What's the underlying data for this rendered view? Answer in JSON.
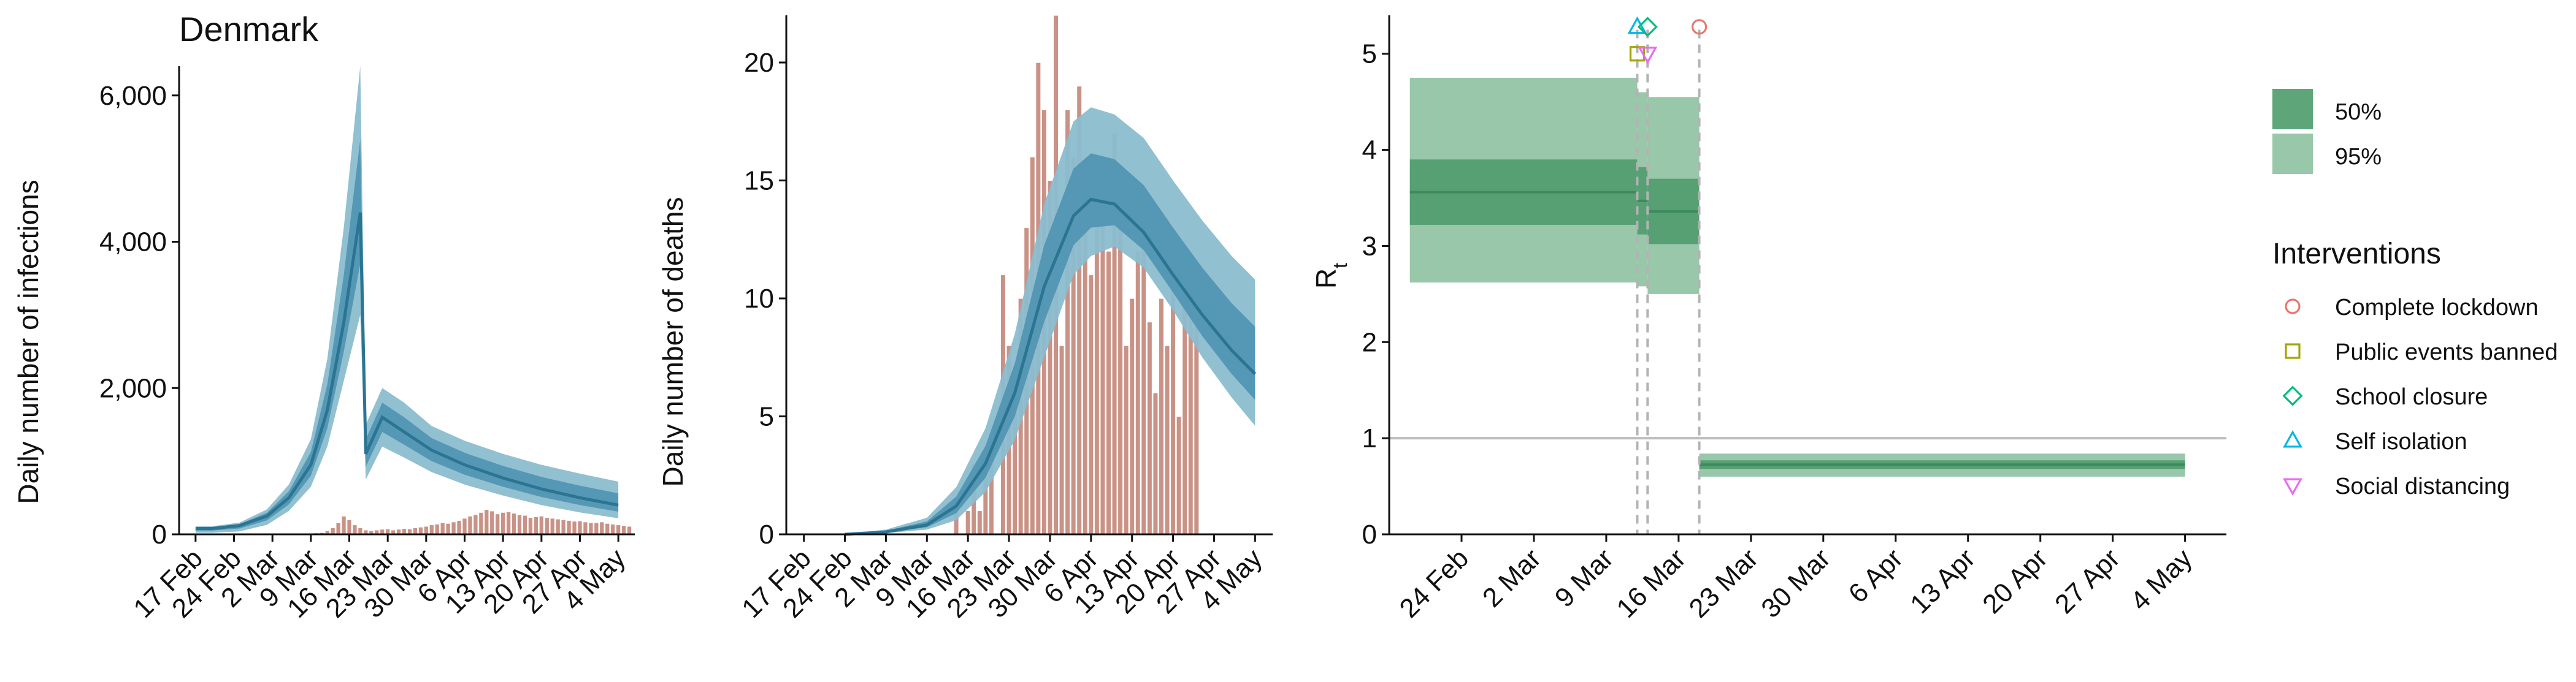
{
  "chart_data": [
    {
      "type": "bar",
      "title": "Denmark",
      "xlabel": "",
      "ylabel": "Daily number of infections",
      "x_ticks": [
        "17 Feb",
        "24 Feb",
        "2 Mar",
        "9 Mar",
        "16 Mar",
        "23 Mar",
        "30 Mar",
        "6 Apr",
        "13 Apr",
        "20 Apr",
        "27 Apr",
        "4 May"
      ],
      "y_ticks": [
        "0",
        "2,000",
        "4,000",
        "6,000"
      ],
      "xlim": [
        "2020-02-14",
        "2020-05-07"
      ],
      "ylim": [
        0,
        6400
      ],
      "bars_observed_cases": {
        "start": "2020-03-01",
        "values": [
          3,
          4,
          4,
          5,
          6,
          8,
          10,
          12,
          15,
          20,
          25,
          50,
          90,
          160,
          250,
          200,
          130,
          90,
          60,
          50,
          60,
          70,
          75,
          60,
          70,
          80,
          75,
          90,
          100,
          110,
          130,
          140,
          160,
          150,
          170,
          190,
          220,
          250,
          270,
          300,
          340,
          320,
          280,
          300,
          310,
          290,
          270,
          260,
          230,
          240,
          250,
          230,
          220,
          210,
          200,
          190,
          180,
          185,
          170,
          160,
          160,
          170,
          150,
          140,
          130,
          120,
          110
        ]
      },
      "model_series": [
        {
          "band": "95%",
          "points": [
            [
              "2020-02-17",
              80,
              110,
              20
            ],
            [
              "2020-02-20",
              80,
              110,
              20
            ],
            [
              "2020-02-25",
              120,
              160,
              40
            ],
            [
              "2020-03-01",
              250,
              340,
              130
            ],
            [
              "2020-03-05",
              500,
              680,
              320
            ],
            [
              "2020-03-09",
              950,
              1300,
              650
            ],
            [
              "2020-03-12",
              1700,
              2400,
              1200
            ],
            [
              "2020-03-15",
              2900,
              4200,
              2100
            ],
            [
              "2020-03-18",
              4400,
              6400,
              3000
            ],
            [
              "2020-03-19",
              1100,
              1500,
              750
            ],
            [
              "2020-03-22",
              1600,
              2000,
              1200
            ],
            [
              "2020-03-26",
              1400,
              1800,
              1050
            ],
            [
              "2020-03-31",
              1150,
              1480,
              850
            ],
            [
              "2020-04-06",
              950,
              1280,
              680
            ],
            [
              "2020-04-13",
              770,
              1100,
              530
            ],
            [
              "2020-04-20",
              620,
              950,
              400
            ],
            [
              "2020-04-27",
              500,
              830,
              300
            ],
            [
              "2020-05-04",
              400,
              720,
              220
            ]
          ]
        }
      ]
    },
    {
      "type": "bar",
      "xlabel": "",
      "ylabel": "Daily number of deaths",
      "x_ticks": [
        "17 Feb",
        "24 Feb",
        "2 Mar",
        "9 Mar",
        "16 Mar",
        "23 Mar",
        "30 Mar",
        "6 Apr",
        "13 Apr",
        "20 Apr",
        "27 Apr",
        "4 May"
      ],
      "y_ticks": [
        "0",
        "5",
        "10",
        "15",
        "20"
      ],
      "xlim": [
        "2020-02-14",
        "2020-05-07"
      ],
      "ylim": [
        0,
        22
      ],
      "bars_observed_deaths": {
        "start": "2020-03-14",
        "values": [
          1,
          0,
          1,
          3,
          1,
          3,
          4,
          0,
          11,
          8,
          6,
          10,
          13,
          16,
          20,
          18,
          15,
          22,
          8,
          18,
          16,
          19,
          13,
          11,
          14,
          15,
          12,
          17,
          15,
          8,
          10,
          12,
          14,
          9,
          6,
          10,
          8,
          11,
          5,
          10,
          10,
          9
        ]
      },
      "model_series": [
        {
          "band": "95%",
          "points": [
            [
              "2020-02-24",
              0,
              0,
              0
            ],
            [
              "2020-03-02",
              0.1,
              0.2,
              0.05
            ],
            [
              "2020-03-09",
              0.4,
              0.7,
              0.2
            ],
            [
              "2020-03-14",
              1.2,
              2.0,
              0.6
            ],
            [
              "2020-03-19",
              3.0,
              4.5,
              1.8
            ],
            [
              "2020-03-24",
              6.0,
              8.5,
              4.0
            ],
            [
              "2020-03-29",
              10.5,
              14.0,
              7.5
            ],
            [
              "2020-04-03",
              13.5,
              17.5,
              11.0
            ],
            [
              "2020-04-06",
              14.2,
              18.1,
              11.8
            ],
            [
              "2020-04-10",
              14.0,
              17.8,
              12.2
            ],
            [
              "2020-04-15",
              12.8,
              16.8,
              11.3
            ],
            [
              "2020-04-20",
              11.0,
              15.0,
              9.5
            ],
            [
              "2020-04-25",
              9.3,
              13.3,
              7.5
            ],
            [
              "2020-04-30",
              7.8,
              11.8,
              5.8
            ],
            [
              "2020-05-04",
              6.8,
              10.8,
              4.6
            ]
          ]
        }
      ]
    },
    {
      "type": "area",
      "xlabel": "",
      "ylabel": "R",
      "ylabel_subscript": "t",
      "x_ticks": [
        "24 Feb",
        "2 Mar",
        "9 Mar",
        "16 Mar",
        "23 Mar",
        "30 Mar",
        "6 Apr",
        "13 Apr",
        "20 Apr",
        "27 Apr",
        "4 May"
      ],
      "y_ticks": [
        "0",
        "1",
        "2",
        "3",
        "4",
        "5"
      ],
      "xlim": [
        "2020-02-17",
        "2020-05-08"
      ],
      "ylim": [
        0,
        5.4
      ],
      "reference_line_y": 1,
      "rt_segments": [
        {
          "from": "2020-02-19",
          "to": "2020-03-12",
          "lo95": 2.62,
          "lo50": 3.22,
          "hi50": 3.9,
          "hi95": 4.75
        },
        {
          "from": "2020-03-12",
          "to": "2020-03-13",
          "lo95": 2.58,
          "lo50": 3.12,
          "hi50": 3.82,
          "hi95": 4.6
        },
        {
          "from": "2020-03-13",
          "to": "2020-03-18",
          "lo95": 2.5,
          "lo50": 3.02,
          "hi50": 3.7,
          "hi95": 4.55
        },
        {
          "from": "2020-03-18",
          "to": "2020-05-04",
          "lo95": 0.6,
          "lo50": 0.68,
          "hi50": 0.77,
          "hi95": 0.84
        }
      ],
      "intervention_dates": [
        "2020-03-12",
        "2020-03-13",
        "2020-03-18"
      ],
      "markers": [
        {
          "intervention": "Public events banned",
          "date": "2020-03-12",
          "y": 5.0
        },
        {
          "intervention": "Self isolation",
          "date": "2020-03-12",
          "y": 5.28
        },
        {
          "intervention": "School closure",
          "date": "2020-03-13",
          "y": 5.28
        },
        {
          "intervention": "Social distancing",
          "date": "2020-03-13",
          "y": 5.0
        },
        {
          "intervention": "Complete lockdown",
          "date": "2020-03-18",
          "y": 5.28
        }
      ],
      "legend_position": "right"
    }
  ],
  "colors": {
    "model_95": "#8bbdcf",
    "model_50": "#4f93b1",
    "model_mean": "#2b7593",
    "bars": "#c99286",
    "bar_edge": "#ffffff",
    "rt_95": "#99c7aa",
    "rt_50": "#56a074",
    "rt_mean": "#3c8a5e",
    "ref_line": "#bdbdbd",
    "intervention_line": "#b3b3b3",
    "axis": "#111111"
  },
  "legend": {
    "bands": [
      {
        "label": "50%",
        "color": "#5ea57a"
      },
      {
        "label": "95%",
        "color": "#99c7aa"
      }
    ],
    "interventions_title": "Interventions",
    "interventions": [
      {
        "label": "Complete lockdown",
        "shape": "circle",
        "color": "#e8776f"
      },
      {
        "label": "Public events banned",
        "shape": "square",
        "color": "#a3a500"
      },
      {
        "label": "School closure",
        "shape": "diamond",
        "color": "#00bf7d"
      },
      {
        "label": "Self isolation",
        "shape": "triangle-up",
        "color": "#00b8e5"
      },
      {
        "label": "Social distancing",
        "shape": "triangle-down",
        "color": "#e76bf3"
      }
    ]
  }
}
